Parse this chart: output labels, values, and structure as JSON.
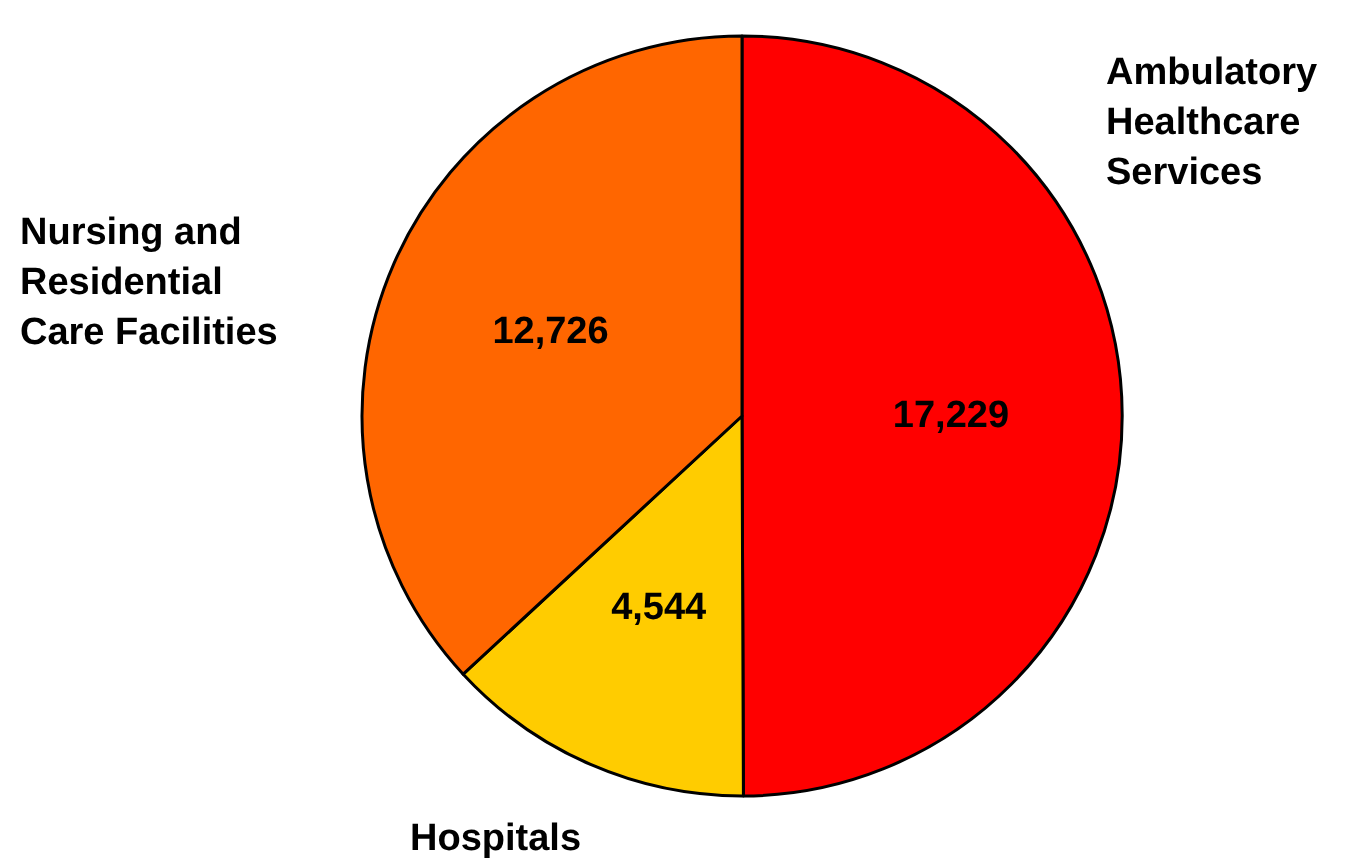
{
  "chart_data": {
    "type": "pie",
    "categories": [
      "Ambulatory Healthcare Services",
      "Hospitals",
      "Nursing and Residential Care Facilities"
    ],
    "values": [
      17229,
      4544,
      12726
    ],
    "colors": [
      "#ff0000",
      "#ffcc00",
      "#ff6600"
    ],
    "value_labels": [
      "17,229",
      "4,544",
      "12,726"
    ]
  }
}
